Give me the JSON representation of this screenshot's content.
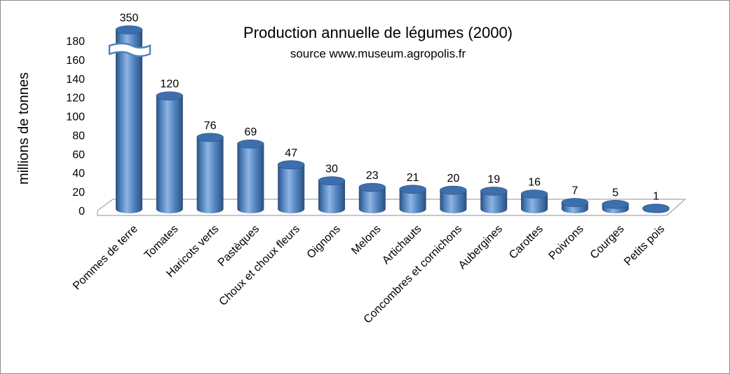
{
  "chart_data": {
    "type": "bar",
    "style": "3d-cylinder",
    "title": "Production annuelle de légumes (2000)",
    "subtitle": "source www.museum.agropolis.fr",
    "xlabel": "",
    "ylabel": "millions de tonnes",
    "ylim": [
      0,
      180
    ],
    "yticks": [
      "0",
      "20",
      "40",
      "60",
      "80",
      "100",
      "120",
      "140",
      "160",
      "180"
    ],
    "axis_break_category": "Pommes de terre",
    "categories": [
      "Pommes de terre",
      "Tomates",
      "Haricots verts",
      "Pastèques",
      "Choux et choux fleurs",
      "Oignons",
      "Melons",
      "Artichauts",
      "Concombres et cornichons",
      "Aubergines",
      "Carottes",
      "Poivrons",
      "Courges",
      "Petits pois"
    ],
    "values": [
      350,
      120,
      76,
      69,
      47,
      30,
      23,
      21,
      20,
      19,
      16,
      7,
      5,
      1
    ],
    "data_labels": [
      "350",
      "120",
      "76",
      "69",
      "47",
      "30",
      "23",
      "21",
      "20",
      "19",
      "16",
      "7",
      "5",
      "1"
    ],
    "colors": {
      "bar": "#4f81bd",
      "bar_dark": "#2b4f7e",
      "bar_light": "#8eb4e3",
      "top": "#3d6fae",
      "floor": "#ffffff",
      "axis": "#a6a6a6"
    },
    "grid": false,
    "legend": "none"
  }
}
